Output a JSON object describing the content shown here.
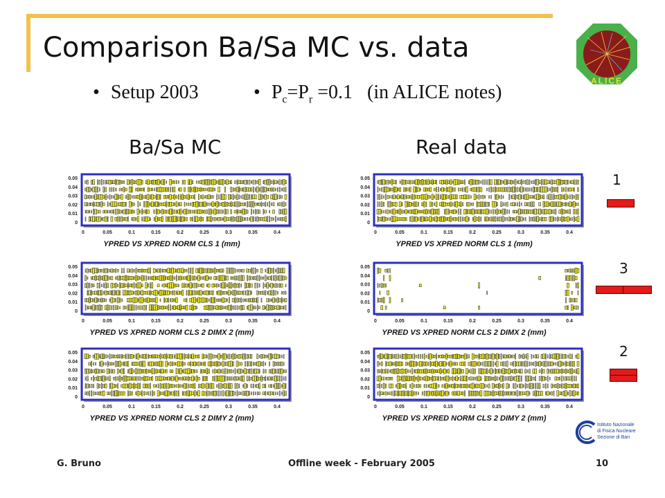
{
  "slide": {
    "title": "Comparison Ba/Sa MC vs. data",
    "bullets": [
      {
        "bullet_mark": "•",
        "text": "Setup 2003"
      },
      {
        "bullet_mark": "•",
        "p1": "P",
        "s1": "c",
        "mid": "=P",
        "s2": "r",
        "rest": " =0.1   (in ALICE notes)"
      }
    ],
    "column_headings": {
      "left": "Ba/Sa MC",
      "right": "Real data"
    },
    "cluster_legend": [
      {
        "label": "1",
        "boxes": 1
      },
      {
        "label": "3",
        "boxes": 2
      },
      {
        "label": "2",
        "boxes": 2
      }
    ],
    "logos": {
      "alice": "ALICE",
      "infn": [
        "Istituto Nazionale",
        "di Fisica Nucleare",
        "Sezione di Bari"
      ]
    },
    "footer": {
      "author": "G. Bruno",
      "event": "Offline week - February  2005",
      "page": "10"
    },
    "colors": {
      "accent": "#f2c24d",
      "frame": "#2b2fc0",
      "marker": "#e6e22a",
      "legend_red": "#e21b1b"
    }
  },
  "plots": {
    "y_ticks": [
      "0.05",
      "0.04",
      "0.03",
      "0.02",
      "0.01",
      "0"
    ],
    "x_ticks": [
      "0",
      "0.05",
      "0.1",
      "0.15",
      "0.2",
      "0.25",
      "0.3",
      "0.35",
      "0.4"
    ],
    "mc": [
      {
        "title": "YPRED VS XPRED NORM CLS 1 (mm)",
        "fill": "uniform"
      },
      {
        "title": "YPRED VS XPRED NORM CLS 2 DIMX 2 (mm)",
        "fill": "uniform"
      },
      {
        "title": "YPRED VS XPRED NORM CLS 2 DIMY 2 (mm)",
        "fill": "uniform"
      }
    ],
    "data": [
      {
        "title": "YPRED VS XPRED NORM CLS 1 (mm)",
        "fill": "uniform"
      },
      {
        "title": "YPRED VS XPRED NORM CLS 2 DIMX 2 (mm)",
        "fill": "edges"
      },
      {
        "title": "YPRED VS XPRED NORM CLS 2 DIMY 2 (mm)",
        "fill": "uniform"
      }
    ]
  }
}
